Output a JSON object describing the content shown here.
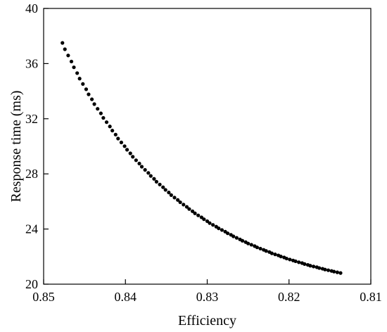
{
  "chart_data": {
    "type": "scatter",
    "title": "",
    "xlabel": "Efficiency",
    "ylabel": "Response time (ms)",
    "xlim": [
      0.85,
      0.81
    ],
    "ylim": [
      20,
      40
    ],
    "x_reversed": true,
    "grid": false,
    "legend": "none",
    "xticks": [
      0.85,
      0.84,
      0.83,
      0.82,
      0.81
    ],
    "xtick_labels": [
      "0.85",
      "0.84",
      "0.83",
      "0.82",
      "0.81"
    ],
    "yticks": [
      20,
      24,
      28,
      32,
      36,
      40
    ],
    "ytick_labels": [
      "20",
      "24",
      "28",
      "32",
      "36",
      "40"
    ],
    "marker_color": "#000000",
    "x": [
      0.8477,
      0.8474,
      0.847,
      0.8466,
      0.8463,
      0.8459,
      0.8456,
      0.8452,
      0.8448,
      0.8445,
      0.8441,
      0.8438,
      0.8434,
      0.843,
      0.8427,
      0.8423,
      0.8419,
      0.8416,
      0.8412,
      0.8409,
      0.8405,
      0.8401,
      0.8398,
      0.8394,
      0.8391,
      0.8387,
      0.8383,
      0.838,
      0.8376,
      0.8372,
      0.8369,
      0.8365,
      0.8362,
      0.8358,
      0.8354,
      0.8351,
      0.8347,
      0.8344,
      0.834,
      0.8336,
      0.8333,
      0.8329,
      0.8325,
      0.8322,
      0.8318,
      0.8315,
      0.8311,
      0.8307,
      0.8304,
      0.83,
      0.8297,
      0.8293,
      0.8289,
      0.8286,
      0.8282,
      0.8278,
      0.8275,
      0.8271,
      0.8268,
      0.8264,
      0.826,
      0.8257,
      0.8253,
      0.825,
      0.8246,
      0.8242,
      0.8239,
      0.8235,
      0.8231,
      0.8228,
      0.8224,
      0.8221,
      0.8217,
      0.8213,
      0.821,
      0.8206,
      0.8203,
      0.8199,
      0.8195,
      0.8192,
      0.8188,
      0.8184,
      0.8181,
      0.8177,
      0.8174,
      0.817,
      0.8166,
      0.8163,
      0.8159,
      0.8156,
      0.8152,
      0.8148,
      0.8145,
      0.8141,
      0.8137
    ],
    "y": [
      37.5,
      37.04,
      36.59,
      36.15,
      35.73,
      35.31,
      34.91,
      34.52,
      34.14,
      33.77,
      33.41,
      33.06,
      32.72,
      32.39,
      32.06,
      31.75,
      31.44,
      31.14,
      30.85,
      30.56,
      30.28,
      30.01,
      29.75,
      29.49,
      29.24,
      28.99,
      28.75,
      28.52,
      28.29,
      28.07,
      27.85,
      27.64,
      27.43,
      27.23,
      27.03,
      26.84,
      26.65,
      26.46,
      26.28,
      26.11,
      25.94,
      25.77,
      25.61,
      25.45,
      25.29,
      25.14,
      24.99,
      24.85,
      24.71,
      24.57,
      24.43,
      24.3,
      24.17,
      24.05,
      23.93,
      23.81,
      23.69,
      23.58,
      23.47,
      23.36,
      23.25,
      23.15,
      23.05,
      22.95,
      22.86,
      22.76,
      22.67,
      22.58,
      22.49,
      22.41,
      22.33,
      22.24,
      22.16,
      22.09,
      22.01,
      21.94,
      21.86,
      21.79,
      21.72,
      21.66,
      21.59,
      21.53,
      21.46,
      21.4,
      21.34,
      21.28,
      21.23,
      21.17,
      21.12,
      21.06,
      21.01,
      20.96,
      20.91,
      20.86,
      20.81
    ]
  }
}
